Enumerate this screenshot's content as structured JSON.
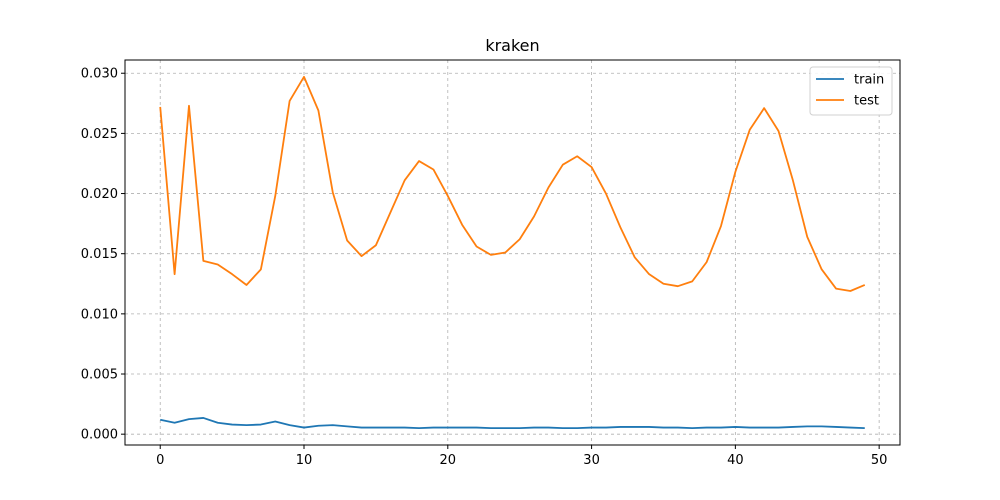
{
  "chart_data": {
    "type": "line",
    "title": "kraken",
    "xlabel": "",
    "ylabel": "",
    "xlim": [
      -2.45,
      51.45
    ],
    "ylim": [
      -0.0009,
      0.0311
    ],
    "grid": true,
    "legend_position": "top-right",
    "x_ticks": [
      0,
      10,
      20,
      30,
      40,
      50
    ],
    "y_ticks": [
      0.0,
      0.005,
      0.01,
      0.015,
      0.02,
      0.025,
      0.03
    ],
    "x_tick_labels": [
      "0",
      "10",
      "20",
      "30",
      "40",
      "50"
    ],
    "y_tick_labels": [
      "0.000",
      "0.005",
      "0.010",
      "0.015",
      "0.020",
      "0.025",
      "0.030"
    ],
    "x": [
      0,
      1,
      2,
      3,
      4,
      5,
      6,
      7,
      8,
      9,
      10,
      11,
      12,
      13,
      14,
      15,
      16,
      17,
      18,
      19,
      20,
      21,
      22,
      23,
      24,
      25,
      26,
      27,
      28,
      29,
      30,
      31,
      32,
      33,
      34,
      35,
      36,
      37,
      38,
      39,
      40,
      41,
      42,
      43,
      44,
      45,
      46,
      47,
      48,
      49
    ],
    "series": [
      {
        "name": "train",
        "color": "#1f77b4",
        "values": [
          0.0012,
          0.00095,
          0.00125,
          0.00135,
          0.00095,
          0.0008,
          0.00075,
          0.0008,
          0.00105,
          0.00075,
          0.00055,
          0.0007,
          0.00075,
          0.00065,
          0.00055,
          0.00055,
          0.00055,
          0.00055,
          0.0005,
          0.00055,
          0.00055,
          0.00055,
          0.00055,
          0.0005,
          0.0005,
          0.0005,
          0.00055,
          0.00055,
          0.0005,
          0.0005,
          0.00055,
          0.00055,
          0.0006,
          0.0006,
          0.0006,
          0.00055,
          0.00055,
          0.0005,
          0.00055,
          0.00055,
          0.0006,
          0.00055,
          0.00055,
          0.00055,
          0.0006,
          0.00065,
          0.00065,
          0.0006,
          0.00055,
          0.0005
        ]
      },
      {
        "name": "test",
        "color": "#ff7f0e",
        "values": [
          0.0272,
          0.0133,
          0.0273,
          0.0144,
          0.0141,
          0.0133,
          0.0124,
          0.0137,
          0.0198,
          0.0277,
          0.0297,
          0.0269,
          0.0201,
          0.0161,
          0.0148,
          0.0157,
          0.0184,
          0.0211,
          0.0227,
          0.022,
          0.0198,
          0.0174,
          0.0156,
          0.0149,
          0.0151,
          0.0162,
          0.0181,
          0.0205,
          0.0224,
          0.0231,
          0.0222,
          0.02,
          0.0172,
          0.0147,
          0.0133,
          0.0125,
          0.0123,
          0.0127,
          0.0143,
          0.0173,
          0.0218,
          0.0253,
          0.0271,
          0.0252,
          0.0211,
          0.0164,
          0.0137,
          0.0121,
          0.0119,
          0.0124
        ]
      }
    ]
  }
}
